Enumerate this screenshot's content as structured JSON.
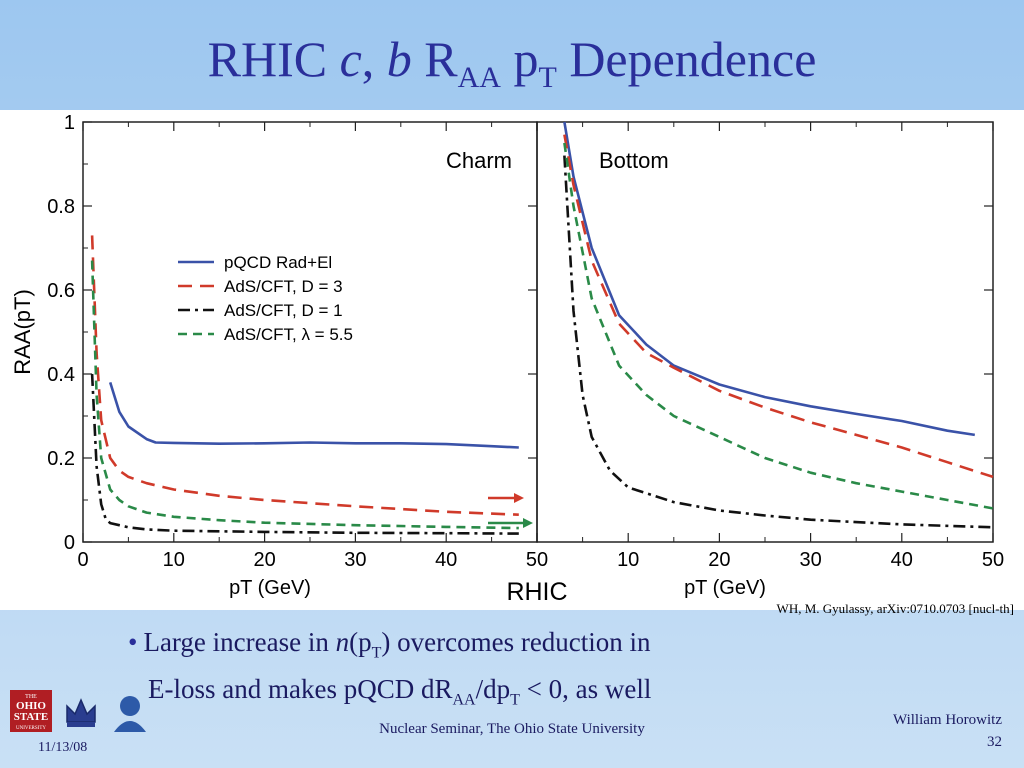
{
  "slide": {
    "title_prefix": "RHIC ",
    "title_c": "c",
    "title_sep": ", ",
    "title_b": "b",
    "title_r": " R",
    "title_r_sub": "AA",
    "title_p": " p",
    "title_p_sub": "T",
    "title_suffix": " Dependence",
    "credit": "WH, M. Gyulassy, arXiv:0710.0703 [nucl-th]",
    "bullet_line1_a": "Large increase in ",
    "bullet_line1_n": "n",
    "bullet_line1_b": "(p",
    "bullet_line1_b_sub": "T",
    "bullet_line1_c": ") overcomes reduction in",
    "bullet_line2_a": "E-loss and makes pQCD dR",
    "bullet_line2_a_sub": "AA",
    "bullet_line2_b": "/dp",
    "bullet_line2_b_sub": "T",
    "bullet_line2_c": " < 0, as well",
    "footer_date": "11/13/08",
    "footer_center": "Nuclear Seminar, The Ohio State University",
    "footer_author": "William Horowitz",
    "footer_page": "32",
    "logo_osu_lines": [
      "THE",
      "OHIO",
      "STATE",
      "UNIVERSITY"
    ]
  },
  "chart_data": [
    {
      "type": "line",
      "panel_label": "Charm",
      "xlabel": "pT (GeV)",
      "ylabel": "RAA(pT)",
      "xlim": [
        0,
        50
      ],
      "ylim": [
        0,
        1
      ],
      "xticks": [
        "0",
        "10",
        "20",
        "30",
        "40",
        "50"
      ],
      "yticks": [
        "0",
        "0.2",
        "0.4",
        "0.6",
        "0.8",
        "1"
      ],
      "bottom_label": "RHIC",
      "series": [
        {
          "name": "pQCD Rad+El",
          "color": "#3a52a8",
          "dash": "solid",
          "x": [
            3,
            4,
            5,
            7,
            8,
            10,
            15,
            20,
            25,
            30,
            35,
            40,
            45,
            48
          ],
          "y": [
            0.38,
            0.31,
            0.275,
            0.245,
            0.237,
            0.236,
            0.234,
            0.235,
            0.237,
            0.235,
            0.235,
            0.233,
            0.228,
            0.225
          ]
        },
        {
          "name": "AdS/CFT, D = 3",
          "color": "#d03a2a",
          "dash": "long",
          "x": [
            1,
            1.5,
            2,
            3,
            4,
            5,
            7,
            10,
            15,
            20,
            30,
            40,
            48
          ],
          "y": [
            0.73,
            0.45,
            0.29,
            0.2,
            0.17,
            0.155,
            0.14,
            0.125,
            0.11,
            0.1,
            0.085,
            0.072,
            0.065
          ]
        },
        {
          "name": "AdS/CFT, D = 1",
          "color": "#111111",
          "dash": "dashdot",
          "x": [
            1,
            1.5,
            2,
            2.5,
            3,
            4,
            5,
            7,
            10,
            20,
            30,
            40,
            48
          ],
          "y": [
            0.4,
            0.18,
            0.09,
            0.055,
            0.045,
            0.04,
            0.035,
            0.03,
            0.027,
            0.024,
            0.022,
            0.021,
            0.02
          ]
        },
        {
          "name": "AdS/CFT, λ = 5.5",
          "color": "#2a8a48",
          "dash": "short",
          "x": [
            1,
            1.5,
            2,
            3,
            4,
            5,
            7,
            10,
            15,
            20,
            30,
            40,
            48
          ],
          "y": [
            0.67,
            0.35,
            0.2,
            0.125,
            0.1,
            0.085,
            0.07,
            0.06,
            0.052,
            0.046,
            0.04,
            0.036,
            0.033
          ]
        }
      ]
    },
    {
      "type": "line",
      "panel_label": "Bottom",
      "xlabel": "pT (GeV)",
      "xlim": [
        0,
        50
      ],
      "ylim": [
        0,
        1
      ],
      "xticks": [
        "0",
        "10",
        "20",
        "30",
        "40",
        "50"
      ],
      "series": [
        {
          "name": "pQCD Rad+El",
          "color": "#3a52a8",
          "dash": "solid",
          "x": [
            3,
            4,
            6,
            9,
            12,
            15,
            20,
            25,
            30,
            35,
            40,
            45,
            48
          ],
          "y": [
            1.0,
            0.87,
            0.7,
            0.54,
            0.47,
            0.42,
            0.375,
            0.345,
            0.323,
            0.305,
            0.288,
            0.265,
            0.255
          ]
        },
        {
          "name": "AdS/CFT, D = 3",
          "color": "#d03a2a",
          "dash": "long",
          "x": [
            3,
            4,
            6,
            9,
            12,
            15,
            20,
            25,
            30,
            35,
            40,
            45,
            50
          ],
          "y": [
            0.97,
            0.85,
            0.67,
            0.52,
            0.45,
            0.415,
            0.36,
            0.32,
            0.285,
            0.255,
            0.225,
            0.19,
            0.155
          ]
        },
        {
          "name": "AdS/CFT, D = 1",
          "color": "#111111",
          "dash": "dashdot",
          "x": [
            3,
            4,
            5,
            6,
            8,
            10,
            15,
            20,
            25,
            30,
            40,
            50
          ],
          "y": [
            0.92,
            0.55,
            0.35,
            0.25,
            0.17,
            0.13,
            0.095,
            0.075,
            0.063,
            0.053,
            0.042,
            0.035
          ]
        },
        {
          "name": "AdS/CFT, λ = 5.5",
          "color": "#2a8a48",
          "dash": "short",
          "x": [
            3,
            4,
            6,
            9,
            12,
            15,
            20,
            25,
            30,
            35,
            40,
            45,
            50
          ],
          "y": [
            0.95,
            0.8,
            0.58,
            0.42,
            0.35,
            0.3,
            0.25,
            0.2,
            0.165,
            0.14,
            0.12,
            0.1,
            0.08
          ]
        }
      ]
    }
  ],
  "legend": {
    "entries": [
      {
        "label": "pQCD Rad+El",
        "color": "#3a52a8",
        "dash": "solid"
      },
      {
        "label": "AdS/CFT, D = 3",
        "color": "#d03a2a",
        "dash": "long"
      },
      {
        "label": "AdS/CFT, D = 1",
        "color": "#111111",
        "dash": "dashdot"
      },
      {
        "label": "AdS/CFT, λ = 5.5",
        "color": "#2a8a48",
        "dash": "short"
      }
    ]
  },
  "colors": {
    "title": "#2a2f9a",
    "arrow_red": "#d03a2a",
    "arrow_green": "#2a8a48"
  }
}
